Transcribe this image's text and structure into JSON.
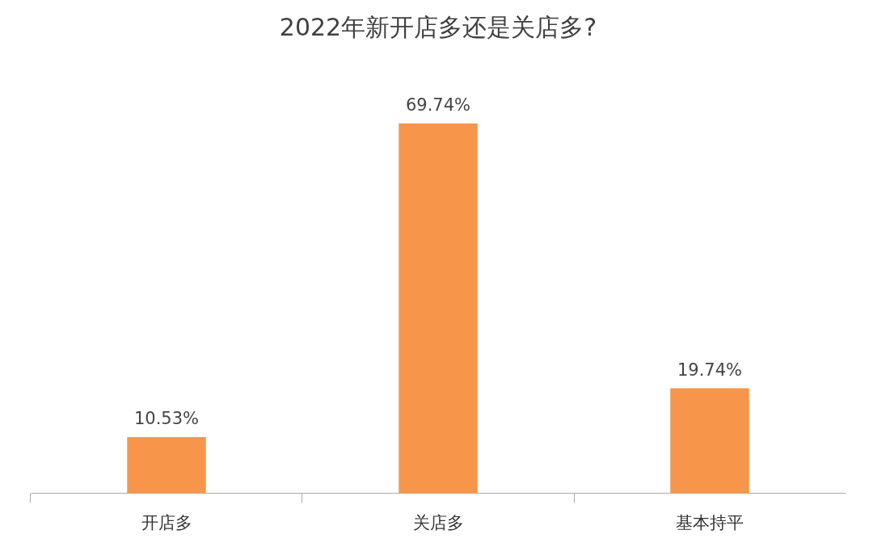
{
  "chart_data": {
    "type": "bar",
    "title": "2022年新开店多还是关店多?",
    "categories": [
      "开店多",
      "关店多",
      "基本持平"
    ],
    "values": [
      10.53,
      69.74,
      19.74
    ],
    "value_labels": [
      "10.53%",
      "69.74%",
      "19.74%"
    ],
    "data_labels": true,
    "color": "#f7954a",
    "grid": false
  }
}
